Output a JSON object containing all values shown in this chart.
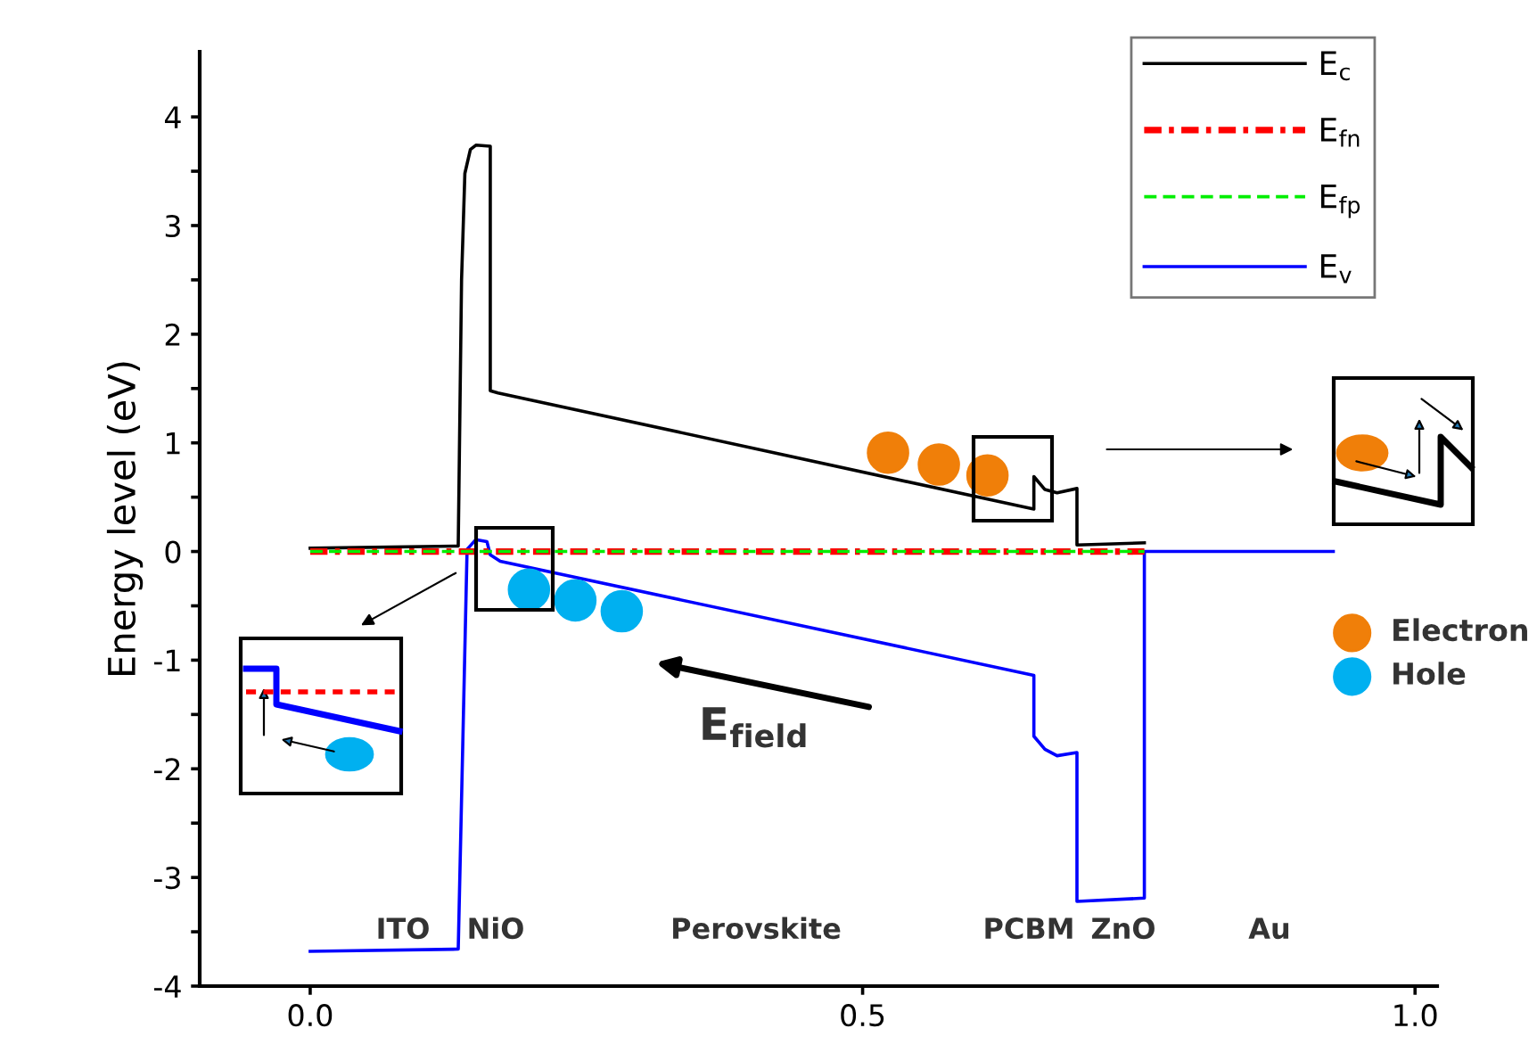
{
  "chart_data": {
    "type": "line",
    "ylabel": "Energy level (eV)",
    "xlim": [
      -0.1,
      1.02
    ],
    "ylim": [
      -4,
      4.6
    ],
    "xticks": [
      {
        "value": 0.0,
        "label": "0.0"
      },
      {
        "value": 0.5,
        "label": "0.5"
      },
      {
        "value": 1.0,
        "label": "1.0"
      }
    ],
    "yticks": [
      -4,
      {
        "value": -3.5,
        "label": null
      },
      -3,
      {
        "value": -2.5,
        "label": null
      },
      -2,
      {
        "value": -1.5,
        "label": null
      },
      -1,
      {
        "value": -0.5,
        "label": null
      },
      0,
      {
        "value": 0.5,
        "label": null
      },
      1,
      {
        "value": 1.5,
        "label": null
      },
      2,
      {
        "value": 2.5,
        "label": null
      },
      3,
      {
        "value": 3.5,
        "label": null
      },
      4
    ],
    "grid": false,
    "legend": "right",
    "series": [
      {
        "name": "E$_{c}$",
        "color": "#000000",
        "line_style": "solid",
        "x": [
          0,
          0.134,
          0.137,
          0.14,
          0.145,
          0.15,
          0.163,
          0.163,
          0.17,
          0.655,
          0.655,
          0.665,
          0.676,
          0.694,
          0.694,
          0.755
        ],
        "values": [
          0.03,
          0.05,
          2.5,
          3.48,
          3.7,
          3.74,
          3.73,
          1.48,
          1.46,
          0.39,
          0.69,
          0.57,
          0.54,
          0.58,
          0.06,
          0.08
        ]
      },
      {
        "name": "E$_{fn}$",
        "color": "#ff0000",
        "line_style": "dashdot",
        "x": [
          0,
          0.755
        ],
        "values": [
          0,
          0
        ]
      },
      {
        "name": "E$_{fp}$",
        "color": "#00ee00",
        "line_style": "dashed",
        "x": [
          0,
          0.755
        ],
        "values": [
          0,
          0
        ]
      },
      {
        "name": "E$_{v}$",
        "color": "#0000ff",
        "line_style": "solid",
        "x": [
          0,
          0.134,
          0.142,
          0.15,
          0.16,
          0.163,
          0.172,
          0.655,
          0.655,
          0.665,
          0.676,
          0.694,
          0.694,
          0.755,
          0.755,
          0.926
        ],
        "values": [
          -3.68,
          -3.66,
          0.02,
          0.11,
          0.09,
          -0.03,
          -0.09,
          -1.14,
          -1.7,
          -1.82,
          -1.88,
          -1.85,
          -3.22,
          -3.19,
          0.0,
          0.0
        ]
      },
      {
        "name": "Electron",
        "type": "scatter",
        "marker": "circle",
        "color": "#f07f09",
        "x": [
          0.523,
          0.569,
          0.613
        ],
        "values": [
          0.91,
          0.8,
          0.7
        ]
      },
      {
        "name": "Hole",
        "type": "scatter",
        "marker": "circle",
        "color": "#00b0f0",
        "x": [
          0.198,
          0.24,
          0.282
        ],
        "values": [
          -0.35,
          -0.45,
          -0.55
        ]
      }
    ],
    "annotations": [
      "ITO",
      "NiO",
      "Perovskite",
      "PCBM",
      "ZnO",
      "Au",
      "E$_{field}$"
    ]
  }
}
